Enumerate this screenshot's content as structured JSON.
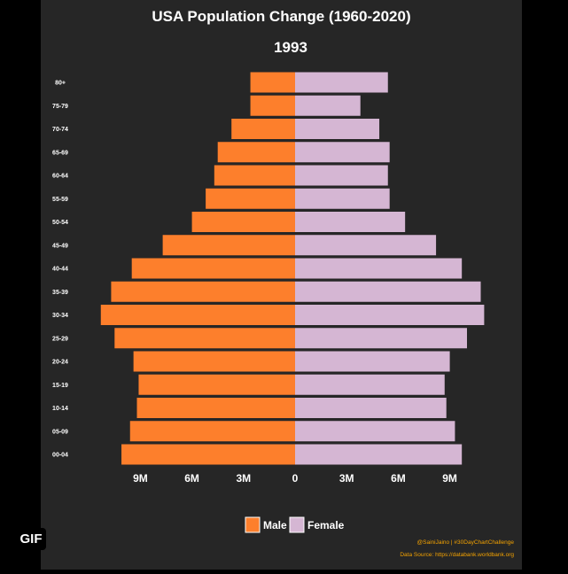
{
  "chart_data": {
    "type": "bar",
    "orientation": "horizontal",
    "title": "USA Population Change (1960-2020)",
    "subtitle": "1993",
    "categories": [
      "80+",
      "75-79",
      "70-74",
      "65-69",
      "60-64",
      "55-59",
      "50-54",
      "45-49",
      "40-44",
      "35-39",
      "30-34",
      "25-29",
      "20-24",
      "15-19",
      "10-14",
      "05-09",
      "00-04"
    ],
    "series": [
      {
        "name": "Male",
        "color": "#fd7f2c",
        "values": [
          2.6,
          2.6,
          3.7,
          4.5,
          4.7,
          5.2,
          6.0,
          7.7,
          9.5,
          10.7,
          11.3,
          10.5,
          9.4,
          9.1,
          9.2,
          9.6,
          10.1
        ]
      },
      {
        "name": "Female",
        "color": "#d5b6d3",
        "values": [
          5.4,
          3.8,
          4.9,
          5.5,
          5.4,
          5.5,
          6.4,
          8.2,
          9.7,
          10.8,
          11.0,
          10.0,
          9.0,
          8.7,
          8.8,
          9.3,
          9.7
        ]
      }
    ],
    "xticks": [
      {
        "value": -9,
        "label": "9M"
      },
      {
        "value": -6,
        "label": "6M"
      },
      {
        "value": -3,
        "label": "3M"
      },
      {
        "value": 0,
        "label": "0"
      },
      {
        "value": 3,
        "label": "3M"
      },
      {
        "value": 6,
        "label": "6M"
      },
      {
        "value": 9,
        "label": "9M"
      }
    ],
    "xlim": [
      -11.8,
      11.8
    ],
    "unit": "millions",
    "grid": false,
    "legend_position": "bottom-center"
  },
  "credits": {
    "handle": "@SainiJaino | #30DayChartChallenge",
    "source": "Data Source: https://databank.worldbank.org"
  },
  "badge": {
    "label": "GIF"
  },
  "colors": {
    "background": "#000000",
    "panel": "#262626",
    "text": "#ffffff",
    "credit_text": "#f5a300"
  }
}
